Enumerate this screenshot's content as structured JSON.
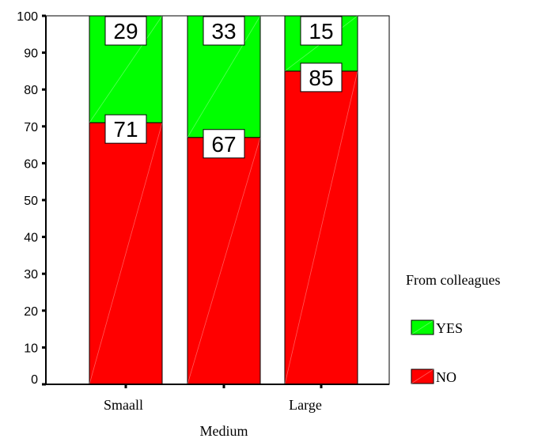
{
  "chart_data": {
    "type": "bar",
    "stacked": true,
    "percent": true,
    "categories": [
      "Smaall",
      "Medium",
      "Large"
    ],
    "series": [
      {
        "name": "NO",
        "values": [
          71,
          67,
          85
        ],
        "color": "#ff0000"
      },
      {
        "name": "YES",
        "values": [
          29,
          33,
          15
        ],
        "color": "#00ff00"
      }
    ],
    "ylim": [
      0,
      100
    ],
    "yticks": [
      0,
      10,
      20,
      30,
      40,
      50,
      60,
      70,
      80,
      90,
      100
    ],
    "xlabel": "",
    "ylabel": "",
    "legend": {
      "title": "From colleagues",
      "position": "right",
      "entries": [
        "YES",
        "NO"
      ]
    },
    "grid": false
  }
}
